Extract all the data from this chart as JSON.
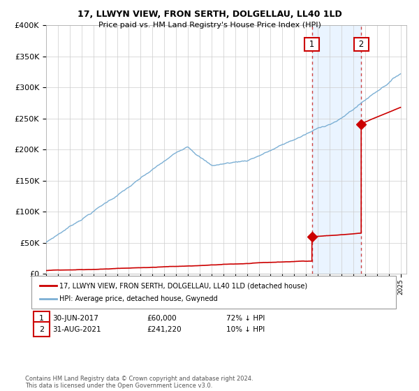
{
  "title": "17, LLWYN VIEW, FRON SERTH, DOLGELLAU, LL40 1LD",
  "subtitle": "Price paid vs. HM Land Registry's House Price Index (HPI)",
  "legend_label_red": "17, LLWYN VIEW, FRON SERTH, DOLGELLAU, LL40 1LD (detached house)",
  "legend_label_blue": "HPI: Average price, detached house, Gwynedd",
  "footnote": "Contains HM Land Registry data © Crown copyright and database right 2024.\nThis data is licensed under the Open Government Licence v3.0.",
  "annotation1_label": "1",
  "annotation1_date": "30-JUN-2017",
  "annotation1_price": "£60,000",
  "annotation1_hpi": "72% ↓ HPI",
  "annotation2_label": "2",
  "annotation2_date": "31-AUG-2021",
  "annotation2_price": "£241,220",
  "annotation2_hpi": "10% ↓ HPI",
  "sale1_x": 2017.5,
  "sale1_y": 60000,
  "sale2_x": 2021.67,
  "sale2_y": 241220,
  "vline1_x": 2017.5,
  "vline2_x": 2021.67,
  "ylim": [
    0,
    400000
  ],
  "xlim_start": 1995,
  "xlim_end": 2025.5,
  "background_color": "#ffffff",
  "plot_bg_color": "#ffffff",
  "grid_color": "#cccccc",
  "red_color": "#cc0000",
  "blue_color": "#7bafd4",
  "vline_color": "#cc4444",
  "highlight_color": "#ddeeff"
}
